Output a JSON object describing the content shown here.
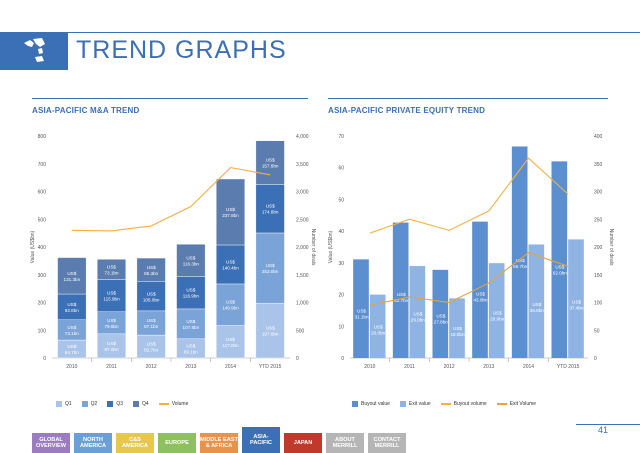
{
  "page": {
    "title": "TREND GRAPHS",
    "page_number": "41",
    "colors": {
      "brand": "#3b6fb6"
    }
  },
  "nav": {
    "tabs": [
      {
        "label": "GLOBAL\nOVERVIEW",
        "color": "#9b7cc0",
        "active": false
      },
      {
        "label": "NORTH\nAMERICA",
        "color": "#6a9fd8",
        "active": false
      },
      {
        "label": "C&S\nAMERICA",
        "color": "#e6c84f",
        "active": false
      },
      {
        "label": "EUROPE",
        "color": "#8cc060",
        "active": false
      },
      {
        "label": "MIDDLE EAST\n& AFRICA",
        "color": "#e8924a",
        "active": false
      },
      {
        "label": "ASIA-\nPACIFIC",
        "color": "#3b6fb6",
        "active": true
      },
      {
        "label": "JAPAN",
        "color": "#c0392b",
        "active": false
      },
      {
        "label": "ABOUT\nMERRILL",
        "color": "#b5b5b5",
        "active": false
      },
      {
        "label": "CONTACT\nMERRILL",
        "color": "#b5b5b5",
        "active": false
      }
    ]
  },
  "chart_data": [
    {
      "type": "bar",
      "title": "ASIA-PACIFIC M&A TREND",
      "stacked": true,
      "ylabel": "Value (US$bn)",
      "y2label": "Number of deals",
      "ylim": [
        0,
        800
      ],
      "y2lim": [
        0,
        4000
      ],
      "yticks": [
        "0",
        "100",
        "200",
        "300",
        "400",
        "500",
        "600",
        "700",
        "800"
      ],
      "y2ticks": [
        "0",
        "500",
        "1,000",
        "1,500",
        "2,000",
        "2,500",
        "3,000",
        "3,500",
        "4,000"
      ],
      "categories": [
        "2010",
        "2011",
        "2012",
        "2013",
        "2014",
        "YTD 2015"
      ],
      "series": [
        {
          "name": "Q1",
          "color": "#a9c4e8",
          "values": [
            64.7,
            87.0,
            82.7,
            69.1,
            117.0,
            197.6
          ],
          "labels": [
            "US$ 64.7bn",
            "US$ 87.0bn",
            "US$ 82.7bn",
            "US$ 69.1bn",
            "US$ 117.0bn",
            "US$ 197.6bn"
          ]
        },
        {
          "name": "Q2",
          "color": "#7aa3d8",
          "values": [
            73.1,
            79.6,
            87.1,
            107.8,
            149.9,
            253.0
          ],
          "labels": [
            "US$ 73.1bn",
            "US$ 79.6bn",
            "US$ 87.1bn",
            "US$ 107.8bn",
            "US$ 149.9bn",
            "US$ 253.0bn"
          ]
        },
        {
          "name": "Q3",
          "color": "#3b6fb6",
          "values": [
            92.8,
            115.9,
            105.0,
            116.9,
            140.4,
            174.6
          ],
          "labels": [
            "US$ 92.8bn",
            "US$ 115.9bn",
            "US$ 105.0bn",
            "US$ 116.9bn",
            "US$ 140.4bn",
            "US$ 174.6bn"
          ]
        },
        {
          "name": "Q4",
          "color": "#5b7cae",
          "values": [
            131.3,
            73.1,
            85.3,
            116.3,
            237.8,
            157.6
          ],
          "labels": [
            "US$ 131.3bn",
            "US$ 73.1bn",
            "US$ 85.3bn",
            "US$ 116.3bn",
            "US$ 237.8bn",
            "US$ 157.6bn"
          ]
        }
      ],
      "line_series": [
        {
          "name": "Volume",
          "color": "#f5b041",
          "axis": "y2",
          "values": [
            2300,
            2290,
            2380,
            2730,
            3430,
            3300
          ]
        }
      ]
    },
    {
      "type": "bar",
      "title": "ASIA-PACIFIC PRIVATE EQUITY TREND",
      "stacked": false,
      "ylabel": "Value (US$bn)",
      "y2label": "Number of deals",
      "ylim": [
        0,
        70
      ],
      "y2lim": [
        0,
        400
      ],
      "yticks": [
        "0",
        "10",
        "20",
        "30",
        "40",
        "50",
        "60",
        "70"
      ],
      "y2ticks": [
        "0",
        "50",
        "100",
        "150",
        "200",
        "250",
        "300",
        "350",
        "400"
      ],
      "categories": [
        "2010",
        "2011",
        "2012",
        "2013",
        "2014",
        "YTD 2015"
      ],
      "series": [
        {
          "name": "Buyout value",
          "color": "#5b8fcf",
          "values": [
            31.1,
            42.7,
            27.8,
            43.0,
            66.7,
            62.0
          ],
          "labels": [
            "US$ 31.1bn",
            "US$ 42.7bn",
            "US$ 27.8bn",
            "US$ 43.0bn",
            "US$ 66.7bn",
            "US$ 62.0bn"
          ]
        },
        {
          "name": "Exit value",
          "color": "#8fb4e3",
          "values": [
            20.0,
            29.0,
            18.8,
            29.9,
            35.8,
            37.4
          ],
          "labels": [
            "US$ 20.0bn",
            "US$ 29.0bn",
            "US$ 18.8bn",
            "US$ 29.9bn",
            "US$ 35.8bn",
            "US$ 37.4bn"
          ]
        }
      ],
      "line_series": [
        {
          "name": "Buyout volume",
          "color": "#f5b041",
          "axis": "y2",
          "values": [
            225,
            250,
            230,
            265,
            360,
            295
          ]
        },
        {
          "name": "Exit Volume",
          "color": "#e8a33a",
          "axis": "y2",
          "values": [
            95,
            110,
            100,
            135,
            190,
            165
          ]
        }
      ]
    }
  ]
}
